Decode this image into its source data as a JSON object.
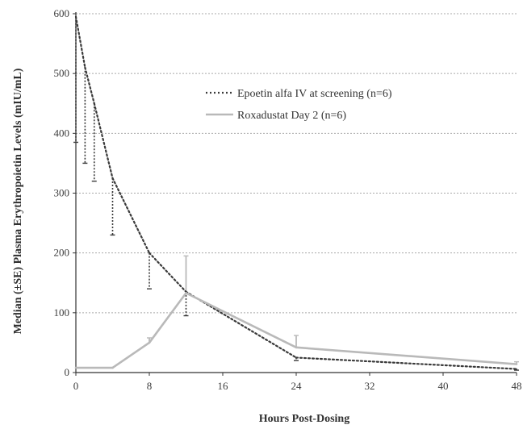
{
  "chart_data": {
    "type": "line",
    "title": "",
    "xlabel": "Hours Post-Dosing",
    "ylabel": "Median (±SE) Plasma Erythropoietin Levels (mIU/mL)",
    "xlim": [
      0,
      48
    ],
    "ylim": [
      0,
      600
    ],
    "x_ticks": [
      0,
      8,
      16,
      24,
      32,
      40,
      48
    ],
    "y_ticks": [
      0,
      100,
      200,
      300,
      400,
      500,
      600
    ],
    "x_tick_labels": [
      "0",
      "8",
      "16",
      "24",
      "32",
      "40",
      "48"
    ],
    "y_tick_labels": [
      "0",
      "100",
      "200",
      "300",
      "400",
      "500",
      "600"
    ],
    "grid": "horizontal dotted",
    "legend_position": "top-right",
    "series": [
      {
        "name": "Epoetin alfa IV at screening (n=6)",
        "style": "dotted",
        "color": "#3a3a3a",
        "error_direction": "down",
        "points": [
          {
            "x": 0,
            "y": 595,
            "err": 210
          },
          {
            "x": 1,
            "y": 510,
            "err": 160
          },
          {
            "x": 2,
            "y": 450,
            "err": 130
          },
          {
            "x": 4,
            "y": 325,
            "err": 95
          },
          {
            "x": 8,
            "y": 200,
            "err": 60
          },
          {
            "x": 12,
            "y": 135,
            "err": 40
          },
          {
            "x": 24,
            "y": 25,
            "err": 5
          },
          {
            "x": 48,
            "y": 6,
            "err": 2
          }
        ]
      },
      {
        "name": "Roxadustat Day 2 (n=6)",
        "style": "solid",
        "color": "#b9b9b9",
        "error_direction": "up",
        "points": [
          {
            "x": 0,
            "y": 8,
            "err": 0
          },
          {
            "x": 4,
            "y": 8,
            "err": 0
          },
          {
            "x": 8,
            "y": 50,
            "err": 8
          },
          {
            "x": 12,
            "y": 133,
            "err": 62
          },
          {
            "x": 24,
            "y": 42,
            "err": 20
          },
          {
            "x": 48,
            "y": 14,
            "err": 4
          }
        ]
      }
    ]
  }
}
